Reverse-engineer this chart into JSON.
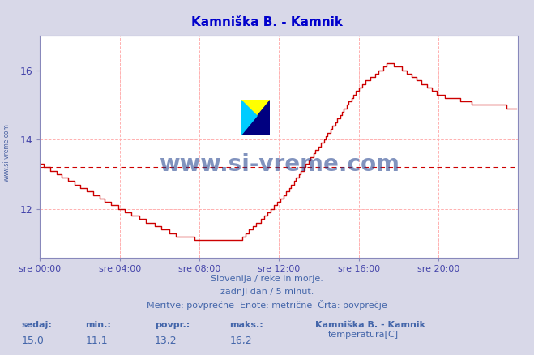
{
  "title": "Kamniška B. - Kamnik",
  "title_color": "#0000cc",
  "bg_color": "#d8d8e8",
  "plot_bg_color": "#ffffff",
  "line_color": "#cc0000",
  "avg_line_color": "#cc0000",
  "avg_value": 13.2,
  "grid_color": "#ffb0b0",
  "yticks": [
    12,
    14,
    16
  ],
  "ylim": [
    10.6,
    17.0
  ],
  "xlabel_color": "#4444aa",
  "xtick_labels": [
    "sre 00:00",
    "sre 04:00",
    "sre 08:00",
    "sre 12:00",
    "sre 16:00",
    "sre 20:00"
  ],
  "xtick_positions": [
    0,
    48,
    96,
    144,
    192,
    240
  ],
  "total_points": 288,
  "footer_line1": "Slovenija / reke in morje.",
  "footer_line2": "zadnji dan / 5 minut.",
  "footer_line3": "Meritve: povprečne  Enote: metrične  Črta: povprečje",
  "footer_color": "#4466aa",
  "stat_labels": [
    "sedaj:",
    "min.:",
    "povpr.:",
    "maks.:"
  ],
  "stat_values": [
    "15,0",
    "11,1",
    "13,2",
    "16,2"
  ],
  "legend_label": "temperatura[C]",
  "legend_station": "Kamniška B. - Kamnik",
  "watermark_text": "www.si-vreme.com",
  "watermark_color": "#1a3a8a",
  "side_text": "www.si-vreme.com"
}
